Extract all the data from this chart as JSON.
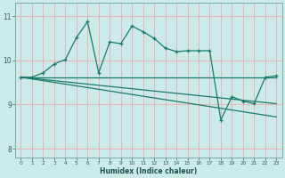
{
  "xlabel": "Humidex (Indice chaleur)",
  "xlim": [
    -0.5,
    23.5
  ],
  "ylim": [
    7.8,
    11.3
  ],
  "yticks": [
    8,
    9,
    10,
    11
  ],
  "xticks": [
    0,
    1,
    2,
    3,
    4,
    5,
    6,
    7,
    8,
    9,
    10,
    11,
    12,
    13,
    14,
    15,
    16,
    17,
    18,
    19,
    20,
    21,
    22,
    23
  ],
  "bg_color": "#cceae7",
  "line_color": "#1a7a6e",
  "grid_color": "#e8b4b8",
  "line1_x": [
    0,
    1,
    2,
    3,
    4,
    5,
    6,
    7,
    8,
    9,
    10,
    11,
    12,
    13,
    14,
    15,
    16,
    17,
    18,
    19,
    20,
    21,
    22,
    23
  ],
  "line1_y": [
    9.62,
    9.62,
    9.72,
    9.92,
    10.02,
    10.52,
    10.88,
    9.72,
    10.42,
    10.38,
    10.78,
    10.65,
    10.5,
    10.28,
    10.2,
    10.22,
    10.22,
    10.22,
    8.65,
    9.18,
    9.08,
    9.02,
    9.62,
    9.65
  ],
  "line2_x": [
    0,
    23
  ],
  "line2_y": [
    9.62,
    9.62
  ],
  "line3_x": [
    0,
    23
  ],
  "line3_y": [
    9.62,
    9.02
  ],
  "line4_x": [
    0,
    23
  ],
  "line4_y": [
    9.62,
    8.72
  ]
}
